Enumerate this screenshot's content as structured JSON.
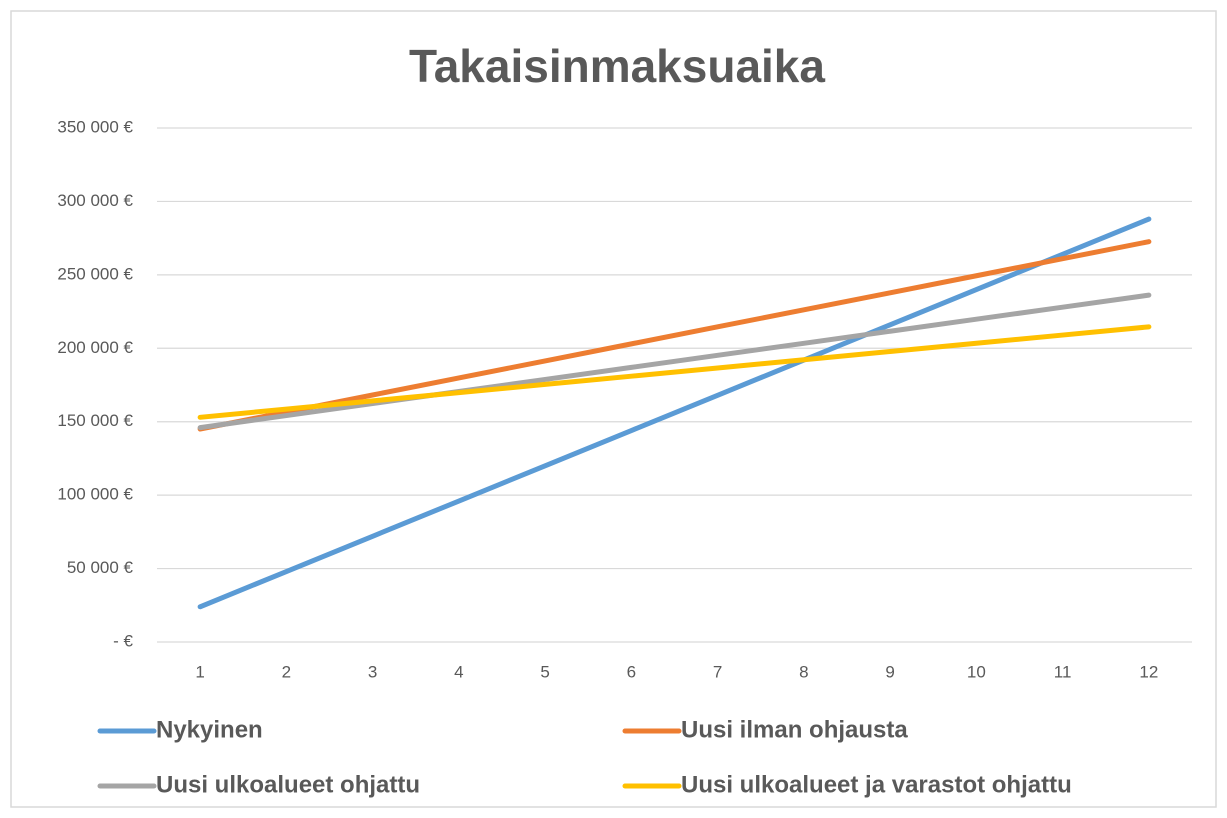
{
  "chart_data": {
    "type": "line",
    "title": "Takaisinmaksuaika",
    "x": [
      1,
      2,
      3,
      4,
      5,
      6,
      7,
      8,
      9,
      10,
      11,
      12
    ],
    "series": [
      {
        "name": "Nykyinen",
        "color": "#5b9bd5",
        "values": [
          24000,
          48000,
          72000,
          96000,
          120000,
          144000,
          168000,
          192000,
          216000,
          240000,
          264000,
          288000
        ]
      },
      {
        "name": "Uusi ilman ohjausta",
        "color": "#ed7d31",
        "values": [
          145000,
          156600,
          168200,
          179800,
          191400,
          203000,
          214600,
          226200,
          237800,
          249400,
          261000,
          272600
        ]
      },
      {
        "name": "Uusi ulkoalueet ohjattu",
        "color": "#a5a5a5",
        "values": [
          146000,
          154200,
          162400,
          170600,
          178800,
          187000,
          195200,
          203400,
          211600,
          219800,
          228000,
          236200
        ]
      },
      {
        "name": "Uusi ulkoalueet ja varastot ohjattu",
        "color": "#ffc000",
        "values": [
          153000,
          158600,
          164200,
          169800,
          175400,
          181000,
          186600,
          192200,
          197800,
          203400,
          209000,
          214600
        ]
      }
    ],
    "xlim": [
      0.5,
      12.5
    ],
    "xticks": [
      1,
      2,
      3,
      4,
      5,
      6,
      7,
      8,
      9,
      10,
      11,
      12
    ],
    "ylim": [
      0,
      350000
    ],
    "yticks": [
      {
        "value": 0,
        "label": "-  €"
      },
      {
        "value": 50000,
        "label": "50 000 €"
      },
      {
        "value": 100000,
        "label": "100 000 €"
      },
      {
        "value": 150000,
        "label": "150 000 €"
      },
      {
        "value": 200000,
        "label": "200 000 €"
      },
      {
        "value": 250000,
        "label": "250 000 €"
      },
      {
        "value": 300000,
        "label": "300 000 €"
      },
      {
        "value": 350000,
        "label": "350 000 €"
      }
    ],
    "grid": true,
    "legend": "bottom"
  }
}
